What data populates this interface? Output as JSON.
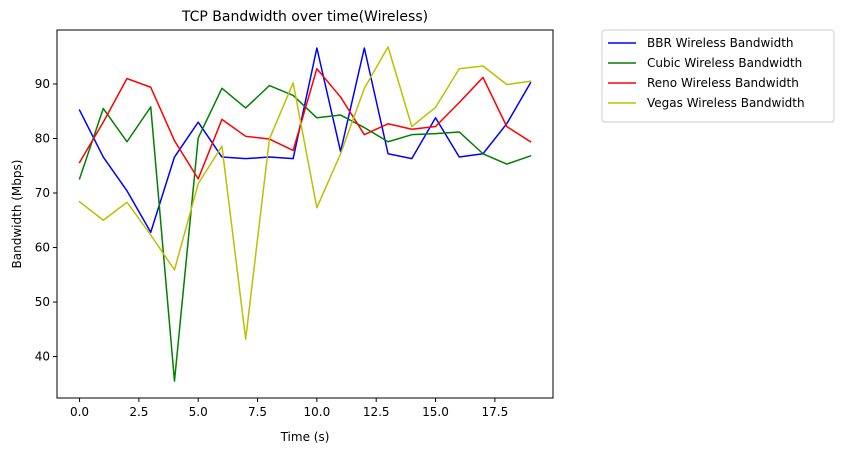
{
  "chart_data": {
    "type": "line",
    "title": "TCP Bandwidth over time(Wireless)",
    "xlabel": "Time (s)",
    "ylabel": "Bandwidth (Mbps)",
    "xlim": [
      -0.95,
      19.95
    ],
    "ylim": [
      32.4,
      99.9
    ],
    "xticks": [
      0.0,
      2.5,
      5.0,
      7.5,
      10.0,
      12.5,
      15.0,
      17.5
    ],
    "xtick_labels": [
      "0.0",
      "2.5",
      "5.0",
      "7.5",
      "10.0",
      "12.5",
      "15.0",
      "17.5"
    ],
    "yticks": [
      40,
      50,
      60,
      70,
      80,
      90
    ],
    "ytick_labels": [
      "40",
      "50",
      "60",
      "70",
      "80",
      "90"
    ],
    "grid": false,
    "legend_position": "outside-top-right",
    "x": [
      0,
      1,
      2,
      3,
      4,
      5,
      6,
      7,
      8,
      9,
      10,
      11,
      12,
      13,
      14,
      15,
      16,
      17,
      18,
      19
    ],
    "series": [
      {
        "name": "BBR Wireless Bandwidth",
        "color": "#0000ff",
        "values": [
          85.2,
          76.6,
          70.4,
          62.8,
          76.6,
          83.0,
          76.6,
          76.3,
          76.6,
          76.3,
          96.6,
          77.6,
          96.6,
          77.2,
          76.3,
          83.8,
          76.6,
          77.2,
          82.7,
          90.2
        ]
      },
      {
        "name": "Cubic Wireless Bandwidth",
        "color": "#008000",
        "values": [
          72.6,
          85.5,
          79.4,
          85.8,
          35.5,
          80.1,
          89.2,
          85.6,
          89.7,
          87.9,
          83.8,
          84.3,
          82.0,
          79.4,
          80.7,
          80.9,
          81.2,
          77.2,
          75.3,
          76.8
        ]
      },
      {
        "name": "Reno Wireless Bandwidth",
        "color": "#ff0000",
        "values": [
          75.6,
          83.0,
          91.0,
          89.4,
          79.6,
          72.6,
          83.5,
          80.4,
          79.9,
          77.8,
          92.8,
          87.6,
          80.7,
          82.7,
          81.7,
          82.2,
          86.6,
          91.2,
          82.2,
          79.4
        ]
      },
      {
        "name": "Vegas Wireless Bandwidth",
        "color": "#bfbf00",
        "values": [
          68.4,
          65.0,
          68.3,
          62.3,
          55.9,
          71.7,
          78.6,
          43.2,
          79.9,
          90.2,
          67.3,
          77.2,
          89.2,
          96.8,
          82.2,
          85.7,
          92.8,
          93.3,
          89.9,
          90.5
        ]
      }
    ]
  }
}
